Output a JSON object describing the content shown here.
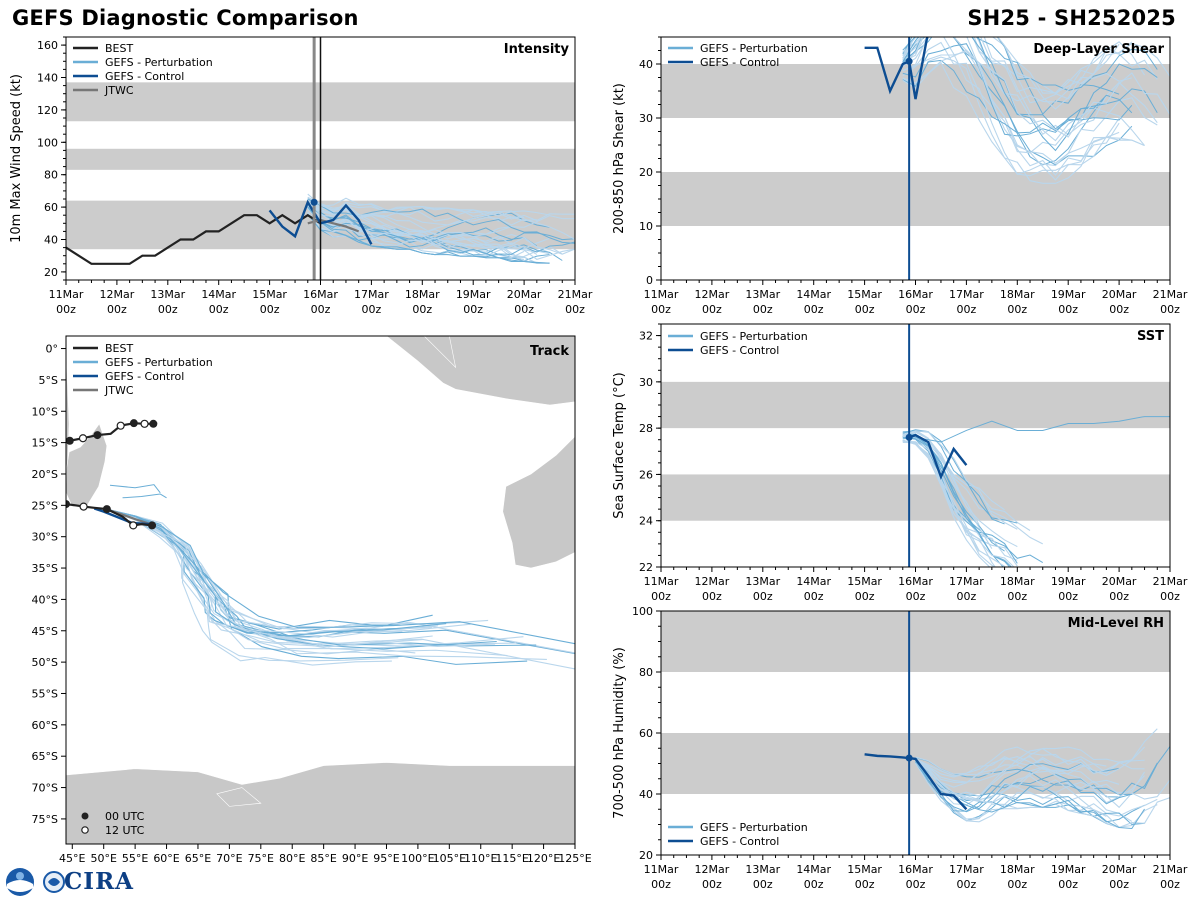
{
  "header": {
    "title": "GEFS Diagnostic Comparison",
    "storm_id": "SH25 - SH252025"
  },
  "colors": {
    "best": "#222222",
    "perturbation": "#6aaed6",
    "perturbation_light": "#b9d6ec",
    "control": "#0d4d92",
    "jtwc": "#777777",
    "band": "#cccccc",
    "land": "#c8c8c8"
  },
  "legend": {
    "best": "BEST",
    "perturbation": "GEFS - Perturbation",
    "control": "GEFS - Control",
    "jtwc": "JTWC",
    "utc00": "00 UTC",
    "utc12": "12 UTC"
  },
  "logo": {
    "text": "CIRA",
    "icon": "noaa-logo-icon"
  },
  "chart_data": [
    {
      "id": "intensity",
      "type": "line",
      "title": "Intensity",
      "ylabel": "10m Max Wind Speed (kt)",
      "xlabel": "",
      "xlim": [
        0,
        240
      ],
      "ylim": [
        15,
        165
      ],
      "yticks": [
        20,
        40,
        60,
        80,
        100,
        120,
        140,
        160
      ],
      "xtick_labels": [
        "11Mar 00z",
        "12Mar 00z",
        "13Mar 00z",
        "14Mar 00z",
        "15Mar 00z",
        "16Mar 00z",
        "17Mar 00z",
        "18Mar 00z",
        "19Mar 00z",
        "20Mar 00z",
        "21Mar 00z"
      ],
      "bands": [
        [
          34,
          64
        ],
        [
          83,
          96
        ],
        [
          113,
          137
        ]
      ],
      "init_hour": 117,
      "current_hour": 120,
      "best": {
        "x": [
          0,
          12,
          24,
          30,
          36,
          42,
          48,
          54,
          60,
          66,
          72,
          78,
          84,
          90,
          96,
          102,
          108,
          114,
          120
        ],
        "y": [
          35,
          25,
          25,
          25,
          30,
          30,
          35,
          40,
          40,
          45,
          45,
          50,
          55,
          55,
          50,
          55,
          50,
          55,
          50
        ]
      },
      "jtwc": {
        "x": [
          114,
          120,
          126,
          132,
          138
        ],
        "y": [
          50,
          52,
          50,
          48,
          45
        ]
      },
      "control": {
        "x": [
          96,
          102,
          108,
          114,
          120,
          126,
          132,
          138,
          144
        ],
        "y": [
          58,
          48,
          42,
          63,
          50,
          52,
          61,
          52,
          37
        ]
      },
      "perturbations": {
        "count": 30,
        "x0": 114,
        "step": 6,
        "center": [
          62,
          55,
          52,
          54,
          50,
          49,
          48,
          47,
          47,
          46,
          45,
          45,
          44,
          44,
          43,
          43,
          42,
          42,
          41,
          41,
          40,
          40
        ],
        "spread": [
          5,
          7,
          8,
          9,
          9,
          10,
          10,
          10,
          10,
          11,
          11,
          11,
          11,
          11,
          11,
          11,
          12,
          12,
          12,
          12,
          12,
          12
        ]
      }
    },
    {
      "id": "shear",
      "type": "line",
      "title": "Deep-Layer Shear",
      "ylabel": "200-850 hPa Shear (kt)",
      "xlim": [
        0,
        240
      ],
      "ylim": [
        0,
        45
      ],
      "yticks": [
        0,
        10,
        20,
        30,
        40
      ],
      "xtick_labels": [
        "11Mar 00z",
        "12Mar 00z",
        "13Mar 00z",
        "14Mar 00z",
        "15Mar 00z",
        "16Mar 00z",
        "17Mar 00z",
        "18Mar 00z",
        "19Mar 00z",
        "20Mar 00z",
        "21Mar 00z"
      ],
      "bands": [
        [
          10,
          20
        ],
        [
          30,
          40
        ]
      ],
      "init_hour": 117,
      "control": {
        "x": [
          96,
          102,
          108,
          114,
          117,
          120,
          126
        ],
        "y": [
          43,
          43,
          35,
          40,
          40.5,
          33.5,
          46
        ]
      },
      "perturbations": {
        "count": 24,
        "x0": 114,
        "step": 6,
        "center": [
          40,
          42,
          46,
          48,
          46,
          44,
          40,
          36,
          33,
          30,
          28,
          27,
          27,
          28,
          30,
          32,
          34,
          35,
          35,
          34,
          32,
          30
        ],
        "spread": [
          3,
          5,
          6,
          8,
          8,
          8,
          8,
          8,
          8,
          8,
          8,
          7,
          7,
          7,
          7,
          7,
          7,
          7,
          7,
          7,
          7,
          7
        ]
      }
    },
    {
      "id": "sst",
      "type": "line",
      "title": "SST",
      "ylabel": "Sea Surface Temp (°C)",
      "xlim": [
        0,
        240
      ],
      "ylim": [
        22,
        32.5
      ],
      "yticks": [
        22,
        24,
        26,
        28,
        30,
        32
      ],
      "xtick_labels": [
        "11Mar 00z",
        "12Mar 00z",
        "13Mar 00z",
        "14Mar 00z",
        "15Mar 00z",
        "16Mar 00z",
        "17Mar 00z",
        "18Mar 00z",
        "19Mar 00z",
        "20Mar 00z",
        "21Mar 00z"
      ],
      "bands": [
        [
          24,
          26
        ],
        [
          28,
          30
        ]
      ],
      "init_hour": 117,
      "control": {
        "x": [
          117,
          120,
          126,
          132,
          138,
          144
        ],
        "y": [
          27.6,
          27.7,
          27.4,
          25.9,
          27.1,
          26.4
        ]
      },
      "perturbations": {
        "count": 24,
        "x0": 114,
        "step": 6,
        "center": [
          27.6,
          27.6,
          27.2,
          26.4,
          25.4,
          24.6,
          24.0,
          23.4,
          23.0,
          22.6,
          22.3,
          22.1
        ],
        "spread": [
          0.2,
          0.3,
          0.5,
          0.8,
          1.0,
          1.1,
          1.2,
          1.2,
          1.2,
          1.2,
          1.2,
          1.2
        ],
        "upper_member": {
          "x": [
            120,
            132,
            144,
            156,
            168,
            180,
            192,
            204,
            216,
            228,
            240
          ],
          "y": [
            27.6,
            27.4,
            27.9,
            28.3,
            27.9,
            27.9,
            28.2,
            28.2,
            28.3,
            28.5,
            28.5
          ]
        }
      }
    },
    {
      "id": "rh",
      "type": "line",
      "title": "Mid-Level RH",
      "ylabel": "700-500 hPa Humidity (%)",
      "xlim": [
        0,
        240
      ],
      "ylim": [
        20,
        100
      ],
      "yticks": [
        20,
        40,
        60,
        80,
        100
      ],
      "xtick_labels": [
        "11Mar 00z",
        "12Mar 00z",
        "13Mar 00z",
        "14Mar 00z",
        "15Mar 00z",
        "16Mar 00z",
        "17Mar 00z",
        "18Mar 00z",
        "19Mar 00z",
        "20Mar 00z",
        "21Mar 00z"
      ],
      "bands": [
        [
          40,
          60
        ],
        [
          80,
          100
        ]
      ],
      "init_hour": 117,
      "control": {
        "x": [
          96,
          102,
          108,
          114,
          117,
          120,
          126,
          132,
          138,
          144
        ],
        "y": [
          53,
          52.5,
          52.3,
          52,
          51.8,
          51.5,
          46,
          40,
          39.5,
          35
        ]
      },
      "perturbations": {
        "count": 24,
        "x0": 120,
        "step": 6,
        "center": [
          51,
          47,
          43,
          40,
          39,
          40,
          42,
          44,
          45,
          46,
          46,
          46,
          45,
          44,
          43,
          42,
          42,
          43,
          46,
          50,
          54
        ],
        "spread": [
          1,
          3,
          4,
          5,
          6,
          7,
          7,
          8,
          8,
          8,
          8,
          8,
          8,
          8,
          8,
          9,
          10,
          11,
          12,
          13,
          14
        ]
      }
    },
    {
      "id": "track",
      "type": "scatter",
      "title": "Track",
      "xlim": [
        44,
        125
      ],
      "ylim": [
        -79,
        2
      ],
      "xtick_labels": [
        "45°E",
        "50°E",
        "55°E",
        "60°E",
        "65°E",
        "70°E",
        "75°E",
        "80°E",
        "85°E",
        "90°E",
        "95°E",
        "100°E",
        "105°E",
        "110°E",
        "115°E",
        "120°E",
        "125°E"
      ],
      "ytick_labels": [
        "0°",
        "5°S",
        "10°S",
        "15°S",
        "20°S",
        "25°S",
        "30°S",
        "35°S",
        "40°S",
        "45°S",
        "50°S",
        "55°S",
        "60°S",
        "65°S",
        "70°S",
        "75°S"
      ],
      "best_tracks": [
        {
          "lon": [
            57.9,
            56.5,
            54.8,
            52.7,
            51.1,
            49.0,
            46.7,
            44.6
          ],
          "lat": [
            -12.0,
            -12.0,
            -11.9,
            -12.3,
            -13.6,
            -13.8,
            -14.3,
            -14.7
          ]
        },
        {
          "lon": [
            57.7,
            56.0,
            54.7,
            53.0,
            50.5,
            48.5,
            46.8,
            45.5,
            44.0
          ],
          "lat": [
            -28.2,
            -28.0,
            -28.2,
            -26.8,
            -25.6,
            -25.4,
            -25.2,
            -25.0,
            -24.8
          ]
        }
      ],
      "best_points_00": {
        "lon": [
          57.9,
          54.8,
          49.0,
          44.6,
          57.7,
          50.5,
          44.0
        ],
        "lat": [
          -12.0,
          -11.9,
          -13.8,
          -14.7,
          -28.2,
          -25.6,
          -24.8
        ]
      },
      "best_points_12": {
        "lon": [
          56.5,
          52.7,
          46.7,
          54.7,
          46.8
        ],
        "lat": [
          -12.0,
          -12.3,
          -14.3,
          -28.2,
          -25.2
        ]
      },
      "control_track": {
        "lon": [
          57.5,
          54.5,
          52.0,
          50.0,
          48.5
        ],
        "lat": [
          -28.0,
          -27.8,
          -26.8,
          -26.0,
          -25.5
        ]
      },
      "jtwc_track": {
        "lon": [
          50.0,
          52.5,
          55.0,
          57.5
        ],
        "lat": [
          -25.5,
          -26.3,
          -27.2,
          -28.0
        ]
      },
      "ensemble_tracks": {
        "start": [
          50.0,
          -25.5
        ],
        "waypoints_lon": [
          50,
          55,
          59,
          62,
          64,
          66,
          67,
          69,
          73,
          78,
          85,
          92,
          100
        ],
        "waypoints_lat": [
          -25.5,
          -27,
          -29,
          -32,
          -36,
          -40,
          -43,
          -45,
          -46.5,
          -47,
          -47,
          -47,
          -46.5
        ],
        "members": 26
      },
      "extra_tracks": [
        {
          "lon": [
            51.0,
            55.0,
            58.0,
            59.0
          ],
          "lat": [
            -21.8,
            -22.2,
            -21.7,
            -23.0
          ]
        },
        {
          "lon": [
            53.0,
            56.0,
            59.0,
            60.0
          ],
          "lat": [
            -23.8,
            -23.6,
            -23.2,
            -23.8
          ]
        }
      ]
    }
  ]
}
